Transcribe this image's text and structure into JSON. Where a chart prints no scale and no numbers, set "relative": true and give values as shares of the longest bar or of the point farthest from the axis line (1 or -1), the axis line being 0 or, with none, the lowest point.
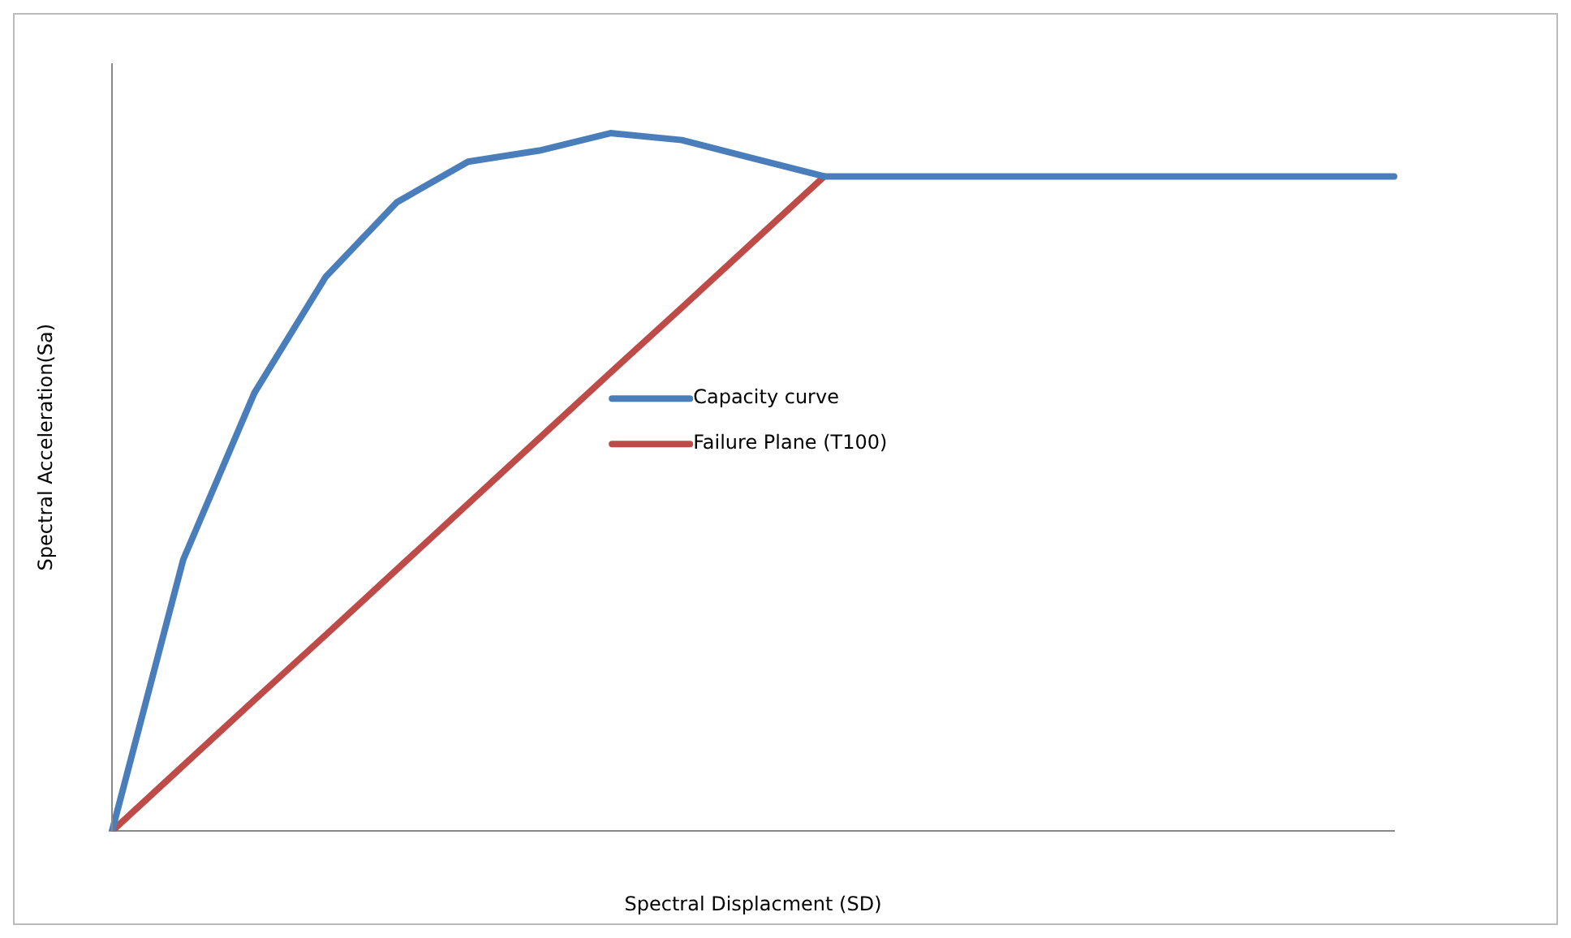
{
  "chart_data": {
    "type": "line",
    "relative": true,
    "xlabel": "Spectral Displacment (SD)",
    "ylabel": "Spectral Acceleration(Sa)",
    "categories": [
      null,
      null,
      null,
      null,
      null,
      null,
      null,
      null,
      null,
      null,
      null,
      null,
      null,
      null,
      null,
      null,
      null,
      null,
      null
    ],
    "legend": "center",
    "grid": false,
    "marker": "none",
    "line_style": "solid",
    "series": [
      {
        "name": "Capacity curve",
        "color": "#4a7ebb",
        "values": [
          0,
          0.389,
          0.628,
          0.794,
          0.901,
          0.959,
          0.975,
          1,
          0.99,
          0.964,
          0.938,
          0.938,
          0.938,
          0.938,
          0.938,
          0.938,
          0.938,
          0.938,
          0.938
        ]
      },
      {
        "name": "Failure Plane (T100)",
        "color": "#be4b48",
        "values": [
          0,
          0.094,
          0.188,
          0.281,
          0.375,
          0.469,
          0.563,
          0.657,
          0.75,
          0.844,
          0.938,
          null,
          null,
          null,
          null,
          null,
          null,
          null,
          null
        ]
      }
    ]
  }
}
